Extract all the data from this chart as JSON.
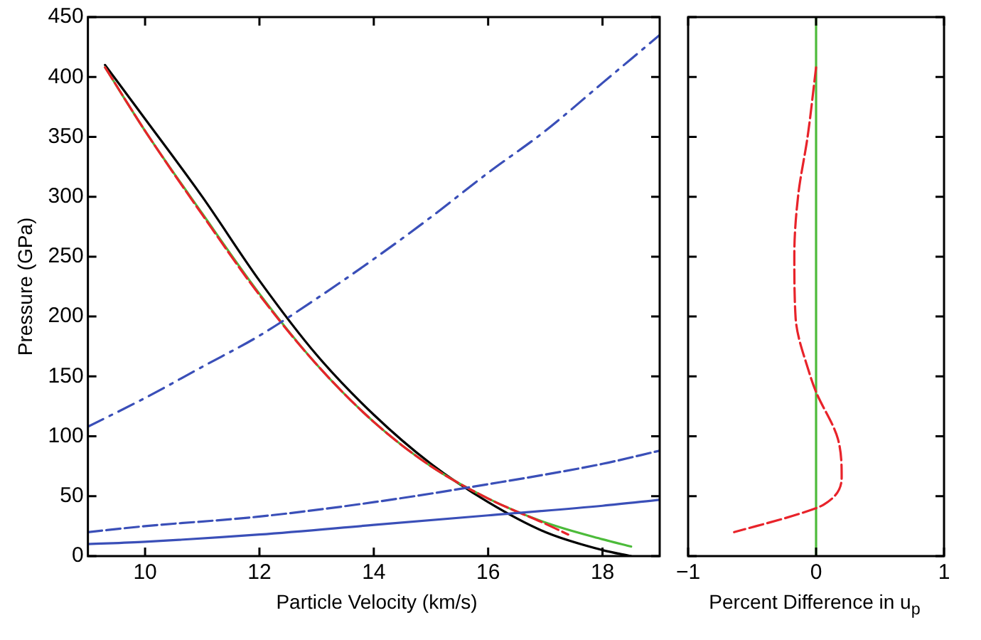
{
  "chart_data": [
    {
      "type": "line",
      "xlabel": "Particle Velocity (km/s)",
      "ylabel": "Pressure (GPa)",
      "xlim": [
        9,
        19
      ],
      "xticks": [
        10,
        12,
        14,
        16,
        18
      ],
      "ylim": [
        0,
        450
      ],
      "yticks": [
        0,
        50,
        100,
        150,
        200,
        250,
        300,
        350,
        400,
        450
      ],
      "grid": false,
      "legend": false,
      "series": [
        {
          "color": "#000000",
          "line_style": "solid",
          "x": [
            9.3,
            10,
            11,
            12,
            13,
            14,
            15,
            16,
            17,
            18,
            18.5
          ],
          "values": [
            410,
            365,
            300,
            230,
            168,
            118,
            77,
            45,
            20,
            5,
            0
          ]
        },
        {
          "color": "#4cbb3a",
          "line_style": "solid",
          "x": [
            9.3,
            10,
            11,
            12,
            13,
            14,
            15,
            16,
            17,
            18,
            18.5
          ],
          "values": [
            408,
            355,
            286,
            219,
            160,
            112,
            75,
            48,
            28,
            14,
            8
          ]
        },
        {
          "color": "#e8232a",
          "line_style": "dashed",
          "x": [
            9.3,
            10,
            11,
            12,
            13,
            14,
            15,
            16,
            17,
            17.4
          ],
          "values": [
            408,
            355,
            285,
            218,
            160,
            112,
            75,
            48,
            27,
            18
          ]
        },
        {
          "color": "#3a4fb8",
          "line_style": "dashdot",
          "x": [
            9,
            10,
            11,
            12,
            13,
            14,
            15,
            16,
            17,
            18,
            19
          ],
          "values": [
            108,
            132,
            158,
            184,
            215,
            248,
            283,
            320,
            355,
            395,
            435
          ]
        },
        {
          "color": "#3a4fb8",
          "line_style": "dashed",
          "x": [
            9,
            10,
            12,
            14,
            16,
            18,
            19
          ],
          "values": [
            20,
            25,
            33,
            45,
            60,
            77,
            88
          ]
        },
        {
          "color": "#3a4fb8",
          "line_style": "solid",
          "x": [
            9,
            10,
            12,
            14,
            16,
            18,
            19
          ],
          "values": [
            10,
            12,
            18,
            26,
            34,
            42,
            47
          ]
        }
      ]
    },
    {
      "type": "line",
      "xlabel": "Percent Difference in u$_{p}$",
      "xlim": [
        -1,
        1
      ],
      "xticks": [
        {
          "value": -1,
          "label": "−1"
        },
        0,
        1
      ],
      "ylim": [
        0,
        450
      ],
      "yticks": [
        0,
        50,
        100,
        150,
        200,
        250,
        300,
        350,
        400,
        450
      ],
      "tick_labels": "x",
      "grid": false,
      "legend": false,
      "ref_lines": [
        {
          "axis": "x",
          "value": 0,
          "color": "#4cbb3a",
          "line_style": "solid"
        }
      ],
      "series": [
        {
          "color": "#e8232a",
          "line_style": "dashed",
          "x": [
            0,
            -0.065,
            -0.14,
            -0.17,
            -0.16,
            -0.05,
            0,
            0.17,
            0.2,
            0.06,
            -0.14,
            -0.64
          ],
          "values": [
            408,
            351,
            301,
            251,
            199,
            152,
            137,
            98,
            66,
            43,
            35,
            20
          ]
        }
      ]
    }
  ]
}
